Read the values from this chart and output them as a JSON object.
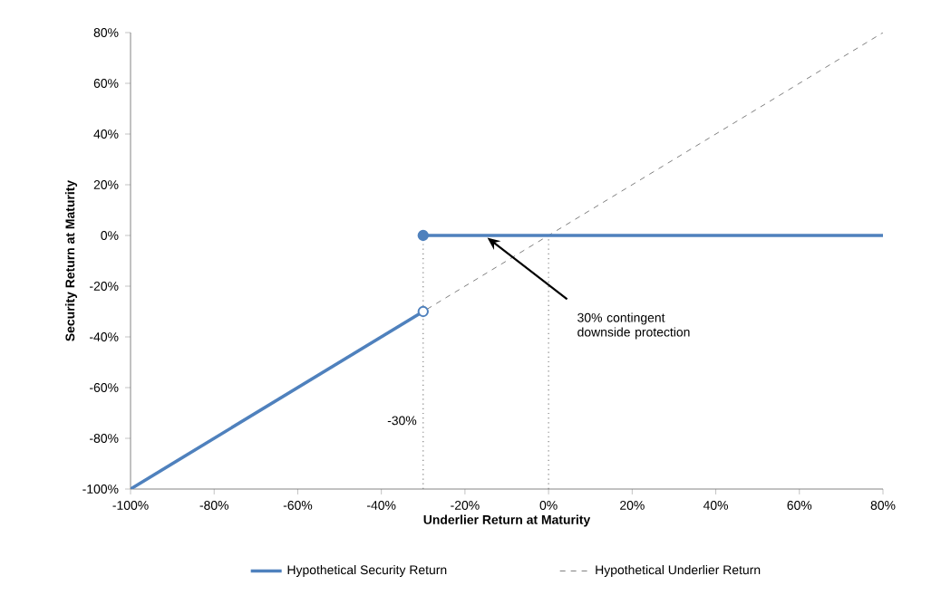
{
  "chart_data": {
    "type": "line",
    "xlabel": "Underlier Return at Maturity",
    "ylabel": "Security Return at Maturity",
    "xlim": [
      -100,
      80
    ],
    "ylim": [
      -100,
      80
    ],
    "xticks": [
      {
        "value": -100,
        "label": "-100%"
      },
      {
        "value": -80,
        "label": "-80%"
      },
      {
        "value": -60,
        "label": "-60%"
      },
      {
        "value": -40,
        "label": "-40%"
      },
      {
        "value": -20,
        "label": "-20%"
      },
      {
        "value": 0,
        "label": "0%"
      },
      {
        "value": 20,
        "label": "20%"
      },
      {
        "value": 40,
        "label": "40%"
      },
      {
        "value": 60,
        "label": "60%"
      },
      {
        "value": 80,
        "label": "80%"
      }
    ],
    "yticks": [
      {
        "value": -100,
        "label": "-100%"
      },
      {
        "value": -80,
        "label": "-80%"
      },
      {
        "value": -60,
        "label": "-60%"
      },
      {
        "value": -40,
        "label": "-40%"
      },
      {
        "value": -20,
        "label": "-20%"
      },
      {
        "value": 0,
        "label": "0%"
      },
      {
        "value": 20,
        "label": "20%"
      },
      {
        "value": 40,
        "label": "40%"
      },
      {
        "value": 60,
        "label": "60%"
      },
      {
        "value": 80,
        "label": "80%"
      }
    ],
    "series": [
      {
        "name": "Hypothetical Security Return",
        "color": "#4f81bd",
        "x": [
          -100,
          -30
        ],
        "values": [
          -100,
          -30
        ],
        "line_style": "solid"
      },
      {
        "color": "#4f81bd",
        "x": [
          -30,
          80
        ],
        "values": [
          0,
          0
        ],
        "line_style": "solid"
      },
      {
        "name": "Hypothetical Underlier Return",
        "color": "#808080",
        "x": [
          -100,
          80
        ],
        "values": [
          -100,
          80
        ],
        "line_style": "dashed"
      },
      {
        "type": "scatter",
        "color": "#4f81bd",
        "x": [
          -30
        ],
        "values": [
          0
        ]
      },
      {
        "type": "scatter",
        "color": "#ffffff",
        "x": [
          -30
        ],
        "values": [
          -30
        ]
      }
    ],
    "ref_lines": [
      {
        "axis": "x",
        "value": -30,
        "label": "-30%",
        "line_style": "dotted",
        "color": "#808080"
      },
      {
        "axis": "x",
        "value": 0,
        "line_style": "dotted",
        "color": "#808080"
      }
    ],
    "annotations": [
      "30% contingent downside protection"
    ],
    "legend": "bottom",
    "grid": false
  }
}
